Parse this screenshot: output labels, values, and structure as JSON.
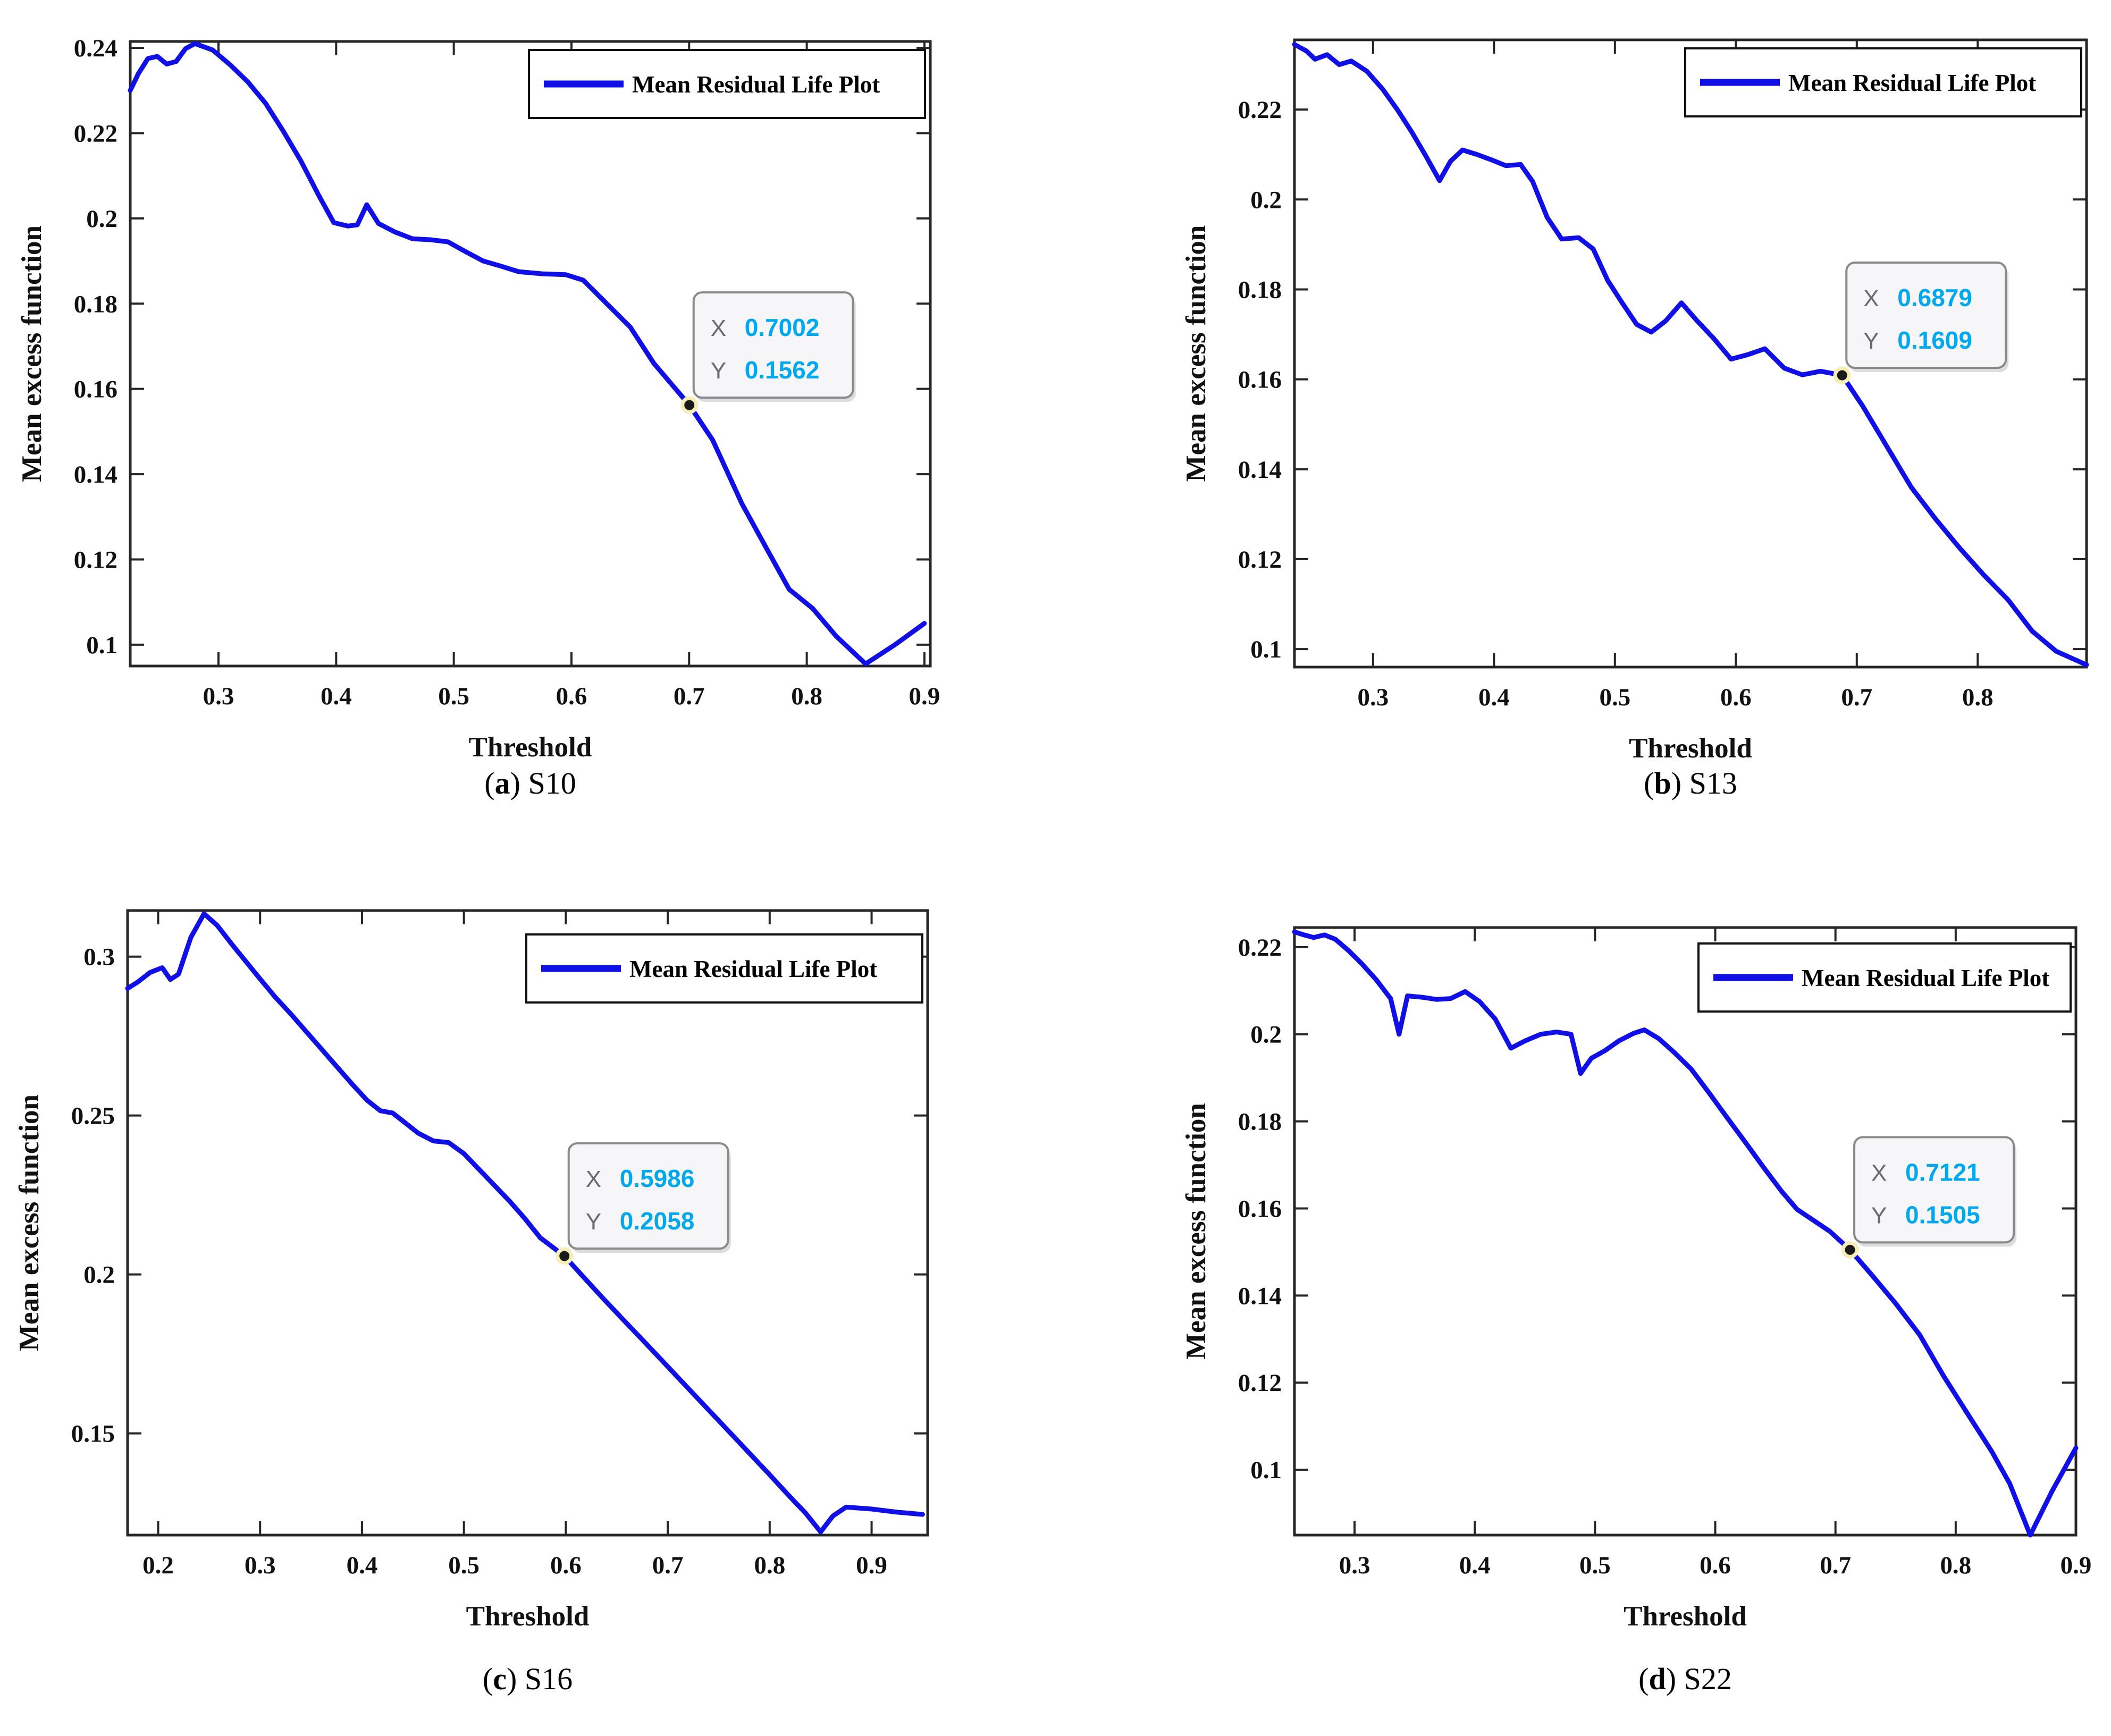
{
  "figure": {
    "background": "#ffffff"
  },
  "colors": {
    "line": "#0f0fe6",
    "axis": "#262626",
    "tick_label": "#111111",
    "legend_border": "#111111",
    "legend_fill": "#ffffff",
    "datatip_fill": "#f6f6f9",
    "datatip_border": "#8a8a8a",
    "datatip_label": "#6b6b6b",
    "datatip_value": "#00a8f0",
    "marker_fill": "#1a1a1a",
    "marker_ring": "#f5eeb8"
  },
  "chart_data": [
    {
      "type": "line",
      "title": "",
      "caption": {
        "prefix": "(",
        "letter": "a",
        "suffix": ")",
        "label": "S10"
      },
      "xlabel": "Threshold",
      "ylabel": "Mean excess function",
      "legend": {
        "label": "Mean Residual Life Plot",
        "position": "top-right"
      },
      "grid": false,
      "xlim": [
        0.225,
        0.905
      ],
      "ylim": [
        0.095,
        0.2415
      ],
      "xticks": [
        0.3,
        0.4,
        0.5,
        0.6,
        0.7,
        0.8,
        0.9
      ],
      "xtick_labels": [
        "0.3",
        "0.4",
        "0.5",
        "0.6",
        "0.7",
        "0.8",
        "0.9"
      ],
      "yticks": [
        0.1,
        0.12,
        0.14,
        0.16,
        0.18,
        0.2,
        0.22,
        0.24
      ],
      "ytick_labels": [
        "0.1",
        "0.12",
        "0.14",
        "0.16",
        "0.18",
        "0.2",
        "0.22",
        "0.24"
      ],
      "datatip": {
        "x_label": "X",
        "y_label": "Y",
        "x_value": "0.7002",
        "y_value": "0.1562",
        "x": 0.7002,
        "y": 0.1562
      },
      "series": [
        {
          "name": "Mean Residual Life Plot",
          "x": [
            0.225,
            0.232,
            0.24,
            0.248,
            0.256,
            0.264,
            0.272,
            0.28,
            0.295,
            0.31,
            0.325,
            0.34,
            0.355,
            0.37,
            0.385,
            0.398,
            0.41,
            0.418,
            0.426,
            0.436,
            0.45,
            0.465,
            0.48,
            0.495,
            0.51,
            0.525,
            0.54,
            0.555,
            0.575,
            0.595,
            0.61,
            0.63,
            0.65,
            0.67,
            0.7002,
            0.72,
            0.745,
            0.765,
            0.785,
            0.805,
            0.825,
            0.85,
            0.875,
            0.9
          ],
          "y": [
            0.23,
            0.234,
            0.2375,
            0.238,
            0.2362,
            0.2368,
            0.2398,
            0.241,
            0.2395,
            0.236,
            0.232,
            0.227,
            0.2205,
            0.2135,
            0.2055,
            0.199,
            0.1982,
            0.1985,
            0.2032,
            0.1988,
            0.1968,
            0.1952,
            0.195,
            0.1945,
            0.1922,
            0.19,
            0.1888,
            0.1875,
            0.187,
            0.1868,
            0.1855,
            0.18,
            0.1745,
            0.166,
            0.1562,
            0.148,
            0.133,
            0.123,
            0.113,
            0.1085,
            0.102,
            0.0955,
            0.1,
            0.105
          ]
        }
      ]
    },
    {
      "type": "line",
      "title": "",
      "caption": {
        "prefix": "(",
        "letter": "b",
        "suffix": ")",
        "label": "S13"
      },
      "xlabel": "Threshold",
      "ylabel": "Mean excess function",
      "legend": {
        "label": "Mean Residual Life Plot",
        "position": "top-right"
      },
      "grid": false,
      "xlim": [
        0.235,
        0.89
      ],
      "ylim": [
        0.096,
        0.2355
      ],
      "xticks": [
        0.3,
        0.4,
        0.5,
        0.6,
        0.7,
        0.8
      ],
      "xtick_labels": [
        "0.3",
        "0.4",
        "0.5",
        "0.6",
        "0.7",
        "0.8"
      ],
      "yticks": [
        0.1,
        0.12,
        0.14,
        0.16,
        0.18,
        0.2,
        0.22
      ],
      "ytick_labels": [
        "0.1",
        "0.12",
        "0.14",
        "0.16",
        "0.18",
        "0.2",
        "0.22"
      ],
      "datatip": {
        "x_label": "X",
        "y_label": "Y",
        "x_value": "0.6879",
        "y_value": "0.1609",
        "x": 0.6879,
        "y": 0.1609
      },
      "series": [
        {
          "name": "Mean Residual Life Plot",
          "x": [
            0.235,
            0.245,
            0.252,
            0.262,
            0.272,
            0.282,
            0.295,
            0.308,
            0.32,
            0.332,
            0.344,
            0.355,
            0.364,
            0.374,
            0.386,
            0.398,
            0.41,
            0.422,
            0.432,
            0.444,
            0.456,
            0.47,
            0.482,
            0.494,
            0.506,
            0.518,
            0.53,
            0.542,
            0.555,
            0.568,
            0.582,
            0.596,
            0.61,
            0.624,
            0.64,
            0.655,
            0.67,
            0.6879,
            0.705,
            0.725,
            0.745,
            0.765,
            0.785,
            0.805,
            0.825,
            0.845,
            0.865,
            0.89
          ],
          "y": [
            0.2345,
            0.233,
            0.2312,
            0.2322,
            0.23,
            0.2308,
            0.2285,
            0.2245,
            0.22,
            0.215,
            0.2095,
            0.2042,
            0.2085,
            0.211,
            0.21,
            0.2088,
            0.2075,
            0.2078,
            0.204,
            0.196,
            0.1912,
            0.1915,
            0.189,
            0.182,
            0.177,
            0.1722,
            0.1705,
            0.173,
            0.177,
            0.173,
            0.169,
            0.1645,
            0.1655,
            0.1668,
            0.1625,
            0.161,
            0.1618,
            0.1609,
            0.154,
            0.145,
            0.136,
            0.129,
            0.1225,
            0.1165,
            0.111,
            0.104,
            0.0995,
            0.0965
          ]
        }
      ]
    },
    {
      "type": "line",
      "title": "",
      "caption": {
        "prefix": "(",
        "letter": "c",
        "suffix": ")",
        "label": "S16"
      },
      "xlabel": "Threshold",
      "ylabel": "Mean excess function",
      "legend": {
        "label": "Mean Residual Life Plot",
        "position": "top-right"
      },
      "grid": false,
      "xlim": [
        0.17,
        0.955
      ],
      "ylim": [
        0.118,
        0.3145
      ],
      "xticks": [
        0.2,
        0.3,
        0.4,
        0.5,
        0.6,
        0.7,
        0.8,
        0.9
      ],
      "xtick_labels": [
        "0.2",
        "0.3",
        "0.4",
        "0.5",
        "0.6",
        "0.7",
        "0.8",
        "0.9"
      ],
      "yticks": [
        0.15,
        0.2,
        0.25,
        0.3
      ],
      "ytick_labels": [
        "0.15",
        "0.2",
        "0.25",
        "0.3"
      ],
      "datatip": {
        "x_label": "X",
        "y_label": "Y",
        "x_value": "0.5986",
        "y_value": "0.2058",
        "x": 0.5986,
        "y": 0.2058
      },
      "series": [
        {
          "name": "Mean Residual Life Plot",
          "x": [
            0.17,
            0.18,
            0.192,
            0.204,
            0.212,
            0.22,
            0.232,
            0.245,
            0.258,
            0.272,
            0.286,
            0.3,
            0.315,
            0.33,
            0.345,
            0.36,
            0.375,
            0.39,
            0.405,
            0.418,
            0.43,
            0.442,
            0.455,
            0.47,
            0.485,
            0.5,
            0.515,
            0.53,
            0.545,
            0.56,
            0.575,
            0.5986,
            0.615,
            0.635,
            0.655,
            0.675,
            0.7,
            0.725,
            0.75,
            0.775,
            0.8,
            0.82,
            0.835,
            0.85,
            0.862,
            0.875,
            0.9,
            0.925,
            0.95
          ],
          "y": [
            0.29,
            0.292,
            0.295,
            0.2965,
            0.2928,
            0.2945,
            0.306,
            0.3135,
            0.3098,
            0.304,
            0.2985,
            0.293,
            0.2872,
            0.282,
            0.2765,
            0.271,
            0.2655,
            0.26,
            0.2548,
            0.2515,
            0.2508,
            0.2478,
            0.2445,
            0.242,
            0.2415,
            0.238,
            0.233,
            0.228,
            0.223,
            0.2175,
            0.2115,
            0.2058,
            0.2,
            0.193,
            0.1862,
            0.1795,
            0.171,
            0.1625,
            0.154,
            0.1455,
            0.137,
            0.13,
            0.125,
            0.119,
            0.124,
            0.1268,
            0.1262,
            0.1252,
            0.1245
          ]
        }
      ]
    },
    {
      "type": "line",
      "title": "",
      "caption": {
        "prefix": "(",
        "letter": "d",
        "suffix": ")",
        "label": "S22"
      },
      "xlabel": "Threshold",
      "ylabel": "Mean excess function",
      "legend": {
        "label": "Mean Residual Life Plot",
        "position": "top-right"
      },
      "grid": false,
      "xlim": [
        0.25,
        0.9
      ],
      "ylim": [
        0.085,
        0.2245
      ],
      "xticks": [
        0.3,
        0.4,
        0.5,
        0.6,
        0.7,
        0.8,
        0.9
      ],
      "xtick_labels": [
        "0.3",
        "0.4",
        "0.5",
        "0.6",
        "0.7",
        "0.8",
        "0.9"
      ],
      "yticks": [
        0.1,
        0.12,
        0.14,
        0.16,
        0.18,
        0.2,
        0.22
      ],
      "ytick_labels": [
        "0.1",
        "0.12",
        "0.14",
        "0.16",
        "0.18",
        "0.2",
        "0.22"
      ],
      "datatip": {
        "x_label": "X",
        "y_label": "Y",
        "x_value": "0.7121",
        "y_value": "0.1505",
        "x": 0.7121,
        "y": 0.1505
      },
      "series": [
        {
          "name": "Mean Residual Life Plot",
          "x": [
            0.25,
            0.258,
            0.266,
            0.275,
            0.284,
            0.295,
            0.306,
            0.318,
            0.33,
            0.337,
            0.344,
            0.356,
            0.368,
            0.38,
            0.392,
            0.404,
            0.417,
            0.43,
            0.442,
            0.455,
            0.468,
            0.48,
            0.488,
            0.497,
            0.508,
            0.52,
            0.532,
            0.541,
            0.553,
            0.566,
            0.58,
            0.595,
            0.61,
            0.625,
            0.64,
            0.655,
            0.668,
            0.682,
            0.695,
            0.7121,
            0.73,
            0.75,
            0.77,
            0.79,
            0.81,
            0.83,
            0.845,
            0.862,
            0.88,
            0.9
          ],
          "y": [
            0.2235,
            0.2228,
            0.2222,
            0.2228,
            0.2218,
            0.2192,
            0.2162,
            0.2125,
            0.2082,
            0.2,
            0.2088,
            0.2085,
            0.208,
            0.2082,
            0.2098,
            0.2075,
            0.2035,
            0.1968,
            0.1985,
            0.2,
            0.2005,
            0.2,
            0.191,
            0.1945,
            0.1962,
            0.1985,
            0.2002,
            0.201,
            0.199,
            0.1958,
            0.192,
            0.1865,
            0.1808,
            0.1752,
            0.1695,
            0.164,
            0.1598,
            0.1572,
            0.1548,
            0.1505,
            0.1448,
            0.1382,
            0.131,
            0.1215,
            0.1128,
            0.1042,
            0.0968,
            0.085,
            0.095,
            0.105
          ]
        }
      ]
    }
  ]
}
